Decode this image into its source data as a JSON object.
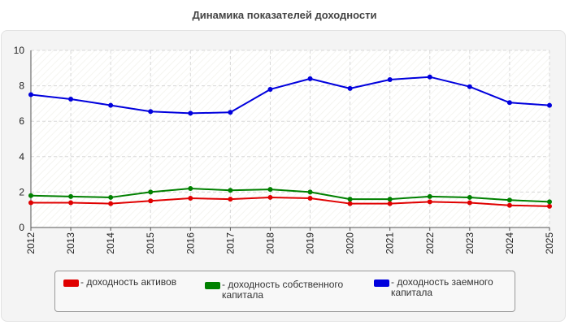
{
  "chart_data": {
    "type": "line",
    "title": "Динамика показателей доходности",
    "xlabel": "",
    "ylabel": "",
    "categories": [
      "2012",
      "2013",
      "2014",
      "2015",
      "2016",
      "2017",
      "2018",
      "2019",
      "2020",
      "2021",
      "2022",
      "2023",
      "2024",
      "2025"
    ],
    "ylim": [
      0,
      10
    ],
    "yticks": [
      0,
      2,
      4,
      6,
      8,
      10
    ],
    "grid": true,
    "legend_position": "bottom",
    "series": [
      {
        "name": "- доходность активов",
        "color": "#e00000",
        "values": [
          1.4,
          1.4,
          1.35,
          1.5,
          1.65,
          1.6,
          1.7,
          1.65,
          1.35,
          1.35,
          1.45,
          1.4,
          1.25,
          1.2
        ]
      },
      {
        "name": "- доходность собственного капитала",
        "color": "#008000",
        "values": [
          1.8,
          1.75,
          1.7,
          2.0,
          2.2,
          2.1,
          2.15,
          2.0,
          1.6,
          1.6,
          1.75,
          1.7,
          1.55,
          1.45
        ]
      },
      {
        "name": "- доходность заемного капитала",
        "color": "#0000dd",
        "values": [
          7.5,
          7.25,
          6.9,
          6.55,
          6.45,
          6.5,
          7.8,
          8.4,
          7.85,
          8.35,
          8.5,
          7.95,
          7.05,
          6.9
        ]
      }
    ]
  }
}
